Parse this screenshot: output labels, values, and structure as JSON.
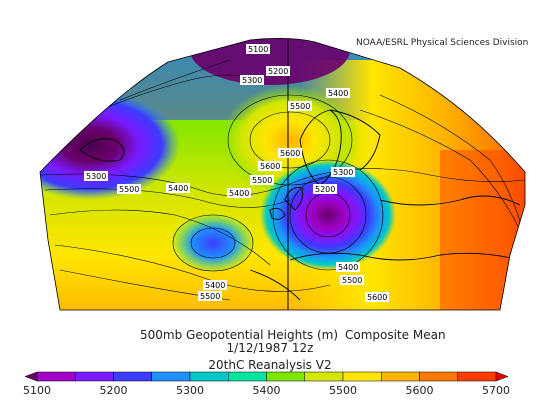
{
  "header": {
    "credit": "NOAA/ESRL Physical Sciences Division"
  },
  "caption": {
    "line1_left": "500mb Geopotential Heights (m)",
    "line1_right": "Composite Mean",
    "line2": "1/12/1987 12z",
    "line3": "20thC Reanalysis V2"
  },
  "colorbar": {
    "ticks": [
      "5100",
      "5200",
      "5300",
      "5400",
      "5500",
      "5600",
      "5700"
    ],
    "colors": [
      "#6a006a",
      "#a000c8",
      "#7a1aff",
      "#3c3cff",
      "#1e90ff",
      "#00c8c8",
      "#00e6a0",
      "#7ce600",
      "#d2e600",
      "#ffe600",
      "#ffb400",
      "#ff7800",
      "#ff3c00",
      "#e60000"
    ]
  },
  "contour_labels": [
    "5100",
    "5200",
    "5300",
    "5400",
    "5500",
    "5600",
    "5300",
    "5500",
    "5400",
    "5400",
    "5500",
    "5600",
    "5200",
    "5300",
    "5400",
    "5500",
    "5600",
    "5400",
    "5500",
    "5500",
    "5600"
  ],
  "colors": {
    "low_center": "#6a006a",
    "high": "#e60000",
    "ocean_mid": "#00e0a0"
  }
}
